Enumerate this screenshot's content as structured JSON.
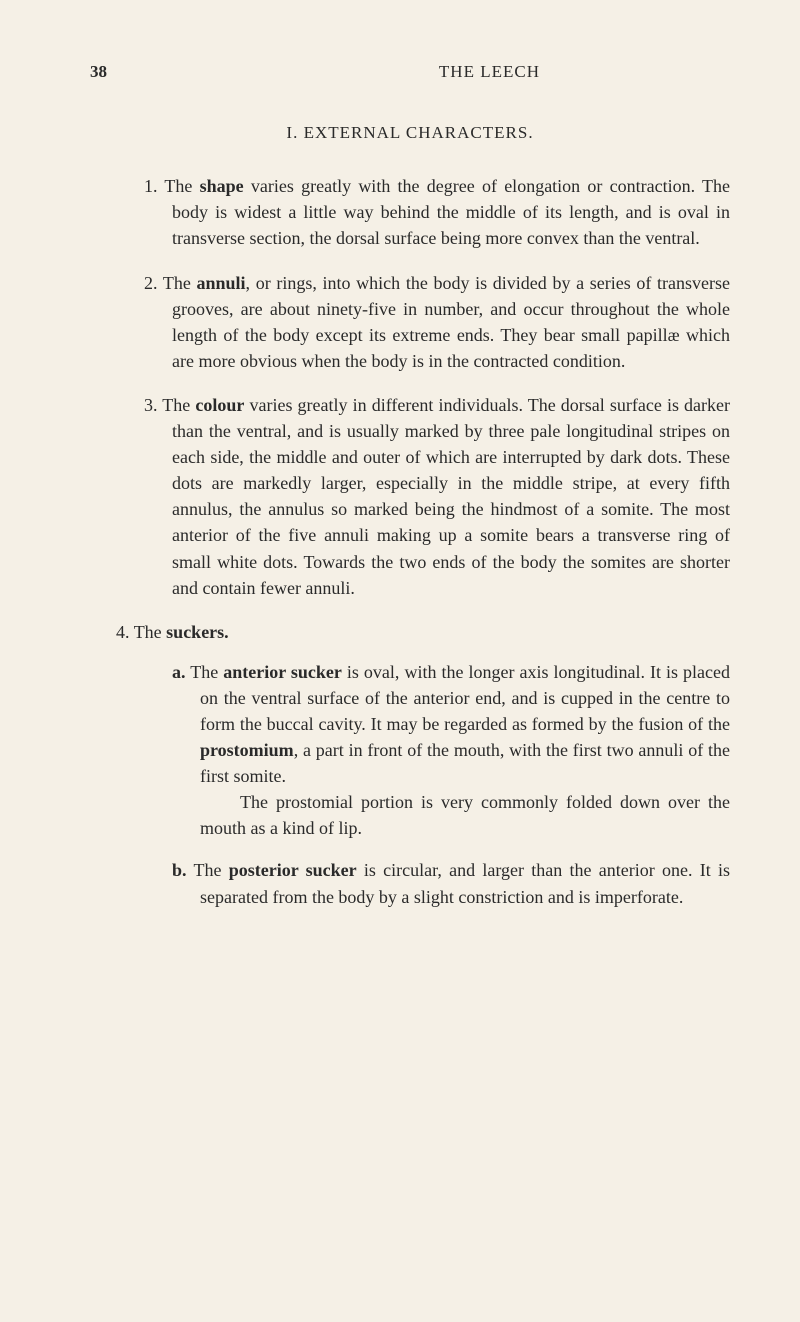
{
  "page": {
    "number": "38",
    "running_title": "THE LEECH",
    "section_heading": "I. EXTERNAL CHARACTERS.",
    "background_color": "#f5f0e6",
    "text_color": "#2a2a2a",
    "body_fontsize": 18,
    "heading_fontsize": 17
  },
  "items": [
    {
      "num": "1.",
      "lead_word": "The ",
      "bold_word": "shape",
      "text": " varies greatly with the degree of elongation or contraction. The body is widest a little way behind the middle of its length, and is oval in transverse section, the dorsal surface being more convex than the ventral."
    },
    {
      "num": "2.",
      "lead_word": "The ",
      "bold_word": "annuli",
      "text": ", or rings, into which the body is divided by a series of transverse grooves, are about ninety-five in number, and occur throughout the whole length of the body except its extreme ends. They bear small papillæ which are more obvious when the body is in the contracted condition."
    },
    {
      "num": "3.",
      "lead_word": "The ",
      "bold_word": "colour",
      "text": " varies greatly in different individuals. The dorsal surface is darker than the ventral, and is usually marked by three pale longitudinal stripes on each side, the middle and outer of which are interrupted by dark dots. These dots are markedly larger, especially in the middle stripe, at every fifth annulus, the annulus so marked being the hindmost of a somite. The most anterior of the five annuli making up a somite bears a transverse ring of small white dots. Towards the two ends of the body the somites are shorter and contain fewer annuli."
    }
  ],
  "item4": {
    "num": "4.",
    "lead": "The ",
    "bold": "suckers.",
    "sub_a": {
      "label": "a.",
      "lead": "The ",
      "bold1": "anterior sucker",
      "text1": " is oval, with the longer axis longitudinal. It is placed on the ventral surface of the anterior end, and is cupped in the centre to form the buccal cavity. It may be regarded as formed by the fusion of the ",
      "bold2": "prostomium",
      "text2": ", a part in front of the mouth, with the first two annuli of the first somite.",
      "para2": "The prostomial portion is very commonly folded down over the mouth as a kind of lip."
    },
    "sub_b": {
      "label": "b.",
      "lead": "The ",
      "bold": "posterior sucker",
      "text": " is circular, and larger than the anterior one. It is separated from the body by a slight constriction and is imperforate."
    }
  }
}
